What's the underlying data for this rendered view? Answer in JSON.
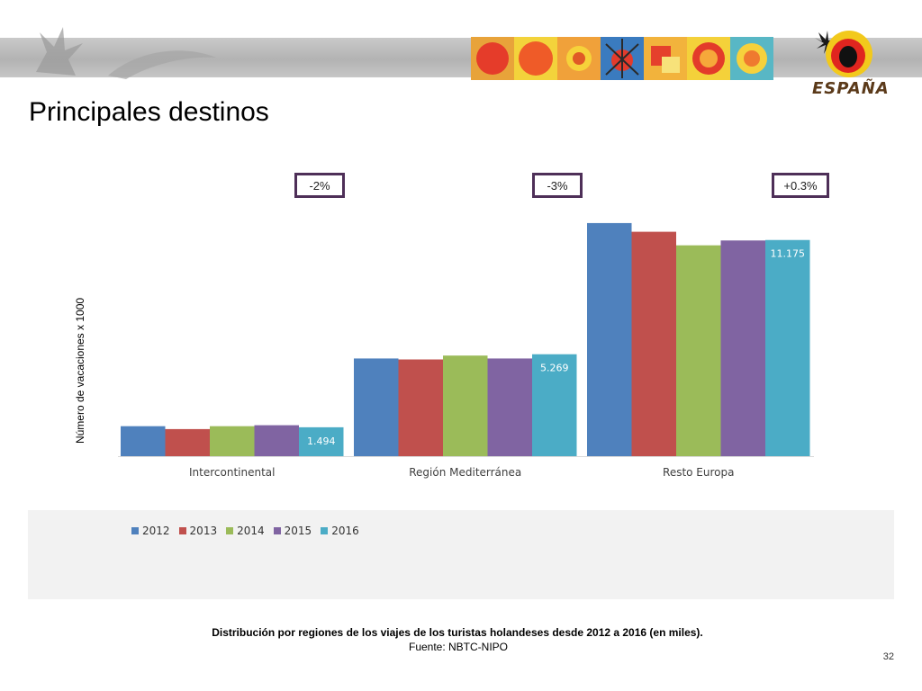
{
  "header": {
    "logo_text": "ESPAÑA",
    "title": "Principales destinos"
  },
  "callouts": [
    "-2%",
    "-3%",
    "+0.3%"
  ],
  "chart_data": {
    "type": "bar",
    "categories": [
      "Intercontinental",
      "Región Mediterránea",
      "Resto Europa"
    ],
    "series": [
      {
        "name": "2012",
        "color": "#4f81bd",
        "values": [
          1.55,
          5.05,
          12.05
        ]
      },
      {
        "name": "2013",
        "color": "#c0504d",
        "values": [
          1.4,
          5.0,
          11.6
        ]
      },
      {
        "name": "2014",
        "color": "#9bbb59",
        "values": [
          1.55,
          5.2,
          10.9
        ]
      },
      {
        "name": "2015",
        "color": "#8064a2",
        "values": [
          1.6,
          5.05,
          11.15
        ]
      },
      {
        "name": "2016",
        "color": "#4bacc6",
        "values": [
          1.494,
          5.269,
          11.175
        ]
      }
    ],
    "data_labels": {
      "series": "2016",
      "values": [
        "1.494",
        "5.269",
        "11.175"
      ]
    },
    "xlabel": "",
    "ylabel": "Número de vacaciones x 1000",
    "ylim": [
      0,
      14
    ],
    "grid": false,
    "legend_position": "bottom"
  },
  "caption": "Distribución por regiones de los viajes de los turistas holandeses desde 2012 a 2016 (en miles).",
  "source": "Fuente: NBTC-NIPO",
  "page_number": "32"
}
